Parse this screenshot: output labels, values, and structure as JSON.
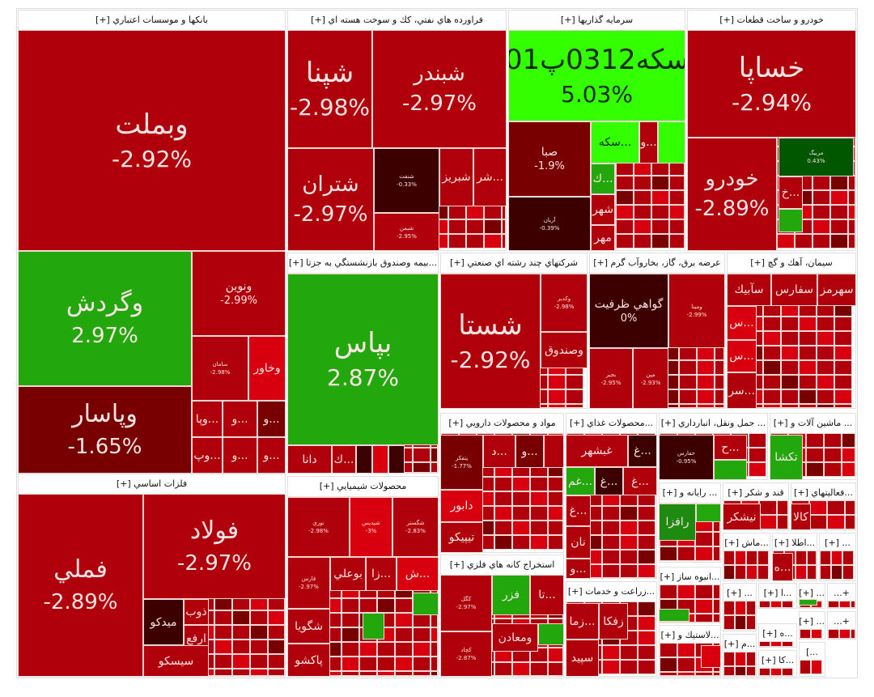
{
  "tones": {
    "red": "#b0000b",
    "bright": "#d8000e",
    "dark": "#790000",
    "darkest": "#3c0000",
    "green": "#22a80c",
    "lime": "#33ff00",
    "dgreen": "#005700",
    "mgreen": "#1e8a10"
  },
  "sectors": [
    {
      "title": "بانكها و موسسات اعتباري [+]",
      "tiles": [
        {
          "symbol": "وبملت",
          "change": "-2.92%",
          "tone": "red"
        },
        {
          "symbol": "وگردش",
          "change": "2.97%",
          "tone": "green"
        },
        {
          "symbol": "وپاسار",
          "change": "-1.65%",
          "tone": "dark"
        },
        {
          "symbol": "ونوين",
          "change": "-2.99%",
          "tone": "red"
        },
        {
          "symbol": "سامان",
          "change": "-2.98%",
          "tone": "red"
        },
        {
          "symbol": "وخاور",
          "tone": "bright"
        },
        {
          "symbol": "...وپا",
          "tone": "red"
        },
        {
          "symbol": "...و",
          "tone": "red"
        },
        {
          "symbol": "...و",
          "tone": "dark"
        },
        {
          "symbol": "...وپ",
          "tone": "red"
        },
        {
          "symbol": "...و",
          "tone": "red"
        },
        {
          "symbol": "...و",
          "tone": "red"
        }
      ]
    },
    {
      "title": "فلزات اساسي [+]",
      "tiles": [
        {
          "symbol": "فملي",
          "change": "-2.89%",
          "tone": "red"
        },
        {
          "symbol": "فولاد",
          "change": "-2.97%",
          "tone": "red"
        },
        {
          "symbol": "ميدكو",
          "tone": "darkest"
        },
        {
          "symbol": "ذوب",
          "tone": "red"
        },
        {
          "symbol": "ارفع",
          "tone": "red"
        },
        {
          "symbol": "سيسكو",
          "tone": "red"
        }
      ]
    },
    {
      "title": "فراورده هاي نفتي، كك و سوخت هسته اي [+]",
      "tiles": [
        {
          "symbol": "شپنا",
          "change": "-2.98%",
          "tone": "red"
        },
        {
          "symbol": "شبندر",
          "change": "-2.97%",
          "tone": "red"
        },
        {
          "symbol": "شتران",
          "change": "-2.97%",
          "tone": "red"
        },
        {
          "symbol": "شنفت",
          "change": "-0.33%",
          "tone": "darkest"
        },
        {
          "symbol": "شيمن",
          "change": "-2.95%",
          "tone": "red"
        },
        {
          "symbol": "شبريز",
          "tone": "red"
        },
        {
          "symbol": "...شر",
          "tone": "red"
        }
      ]
    },
    {
      "title": "سرمايه گذاريها [+]",
      "tiles": [
        {
          "symbol": "سكه0312پ01",
          "change": "5.03%",
          "tone": "lime"
        },
        {
          "symbol": "صبا",
          "change": "-1.9%",
          "tone": "dark"
        },
        {
          "symbol": "آريان",
          "change": "-0.39%",
          "tone": "darkest"
        },
        {
          "symbol": "...سكه",
          "tone": "lime"
        },
        {
          "symbol": "...و",
          "tone": "red"
        },
        {
          "symbol": "",
          "tone": "lime"
        },
        {
          "symbol": "...ك",
          "tone": "green"
        },
        {
          "symbol": "شهر",
          "tone": "red"
        },
        {
          "symbol": "مهر",
          "tone": "red"
        }
      ]
    },
    {
      "title": "خودرو و ساخت قطعات [+]",
      "tiles": [
        {
          "symbol": "خساپا",
          "change": "-2.94%",
          "tone": "red"
        },
        {
          "symbol": "خودرو",
          "change": "-2.89%",
          "tone": "red"
        },
        {
          "symbol": "مربيگ",
          "change": "0.43%",
          "tone": "dgreen"
        },
        {
          "symbol": "...خ",
          "tone": "red"
        },
        {
          "symbol": "",
          "tone": "green"
        }
      ]
    },
    {
      "title": "...بيمه وصندوق بازنشستگي به جزتا [+]",
      "tiles": [
        {
          "symbol": "بپاس",
          "change": "2.87%",
          "tone": "green"
        },
        {
          "symbol": "دانا",
          "tone": "red"
        },
        {
          "symbol": "...ك",
          "tone": "red"
        },
        {
          "symbol": "",
          "tone": "darkest"
        },
        {
          "symbol": "",
          "tone": "bright"
        },
        {
          "symbol": "",
          "tone": "darkest"
        }
      ]
    },
    {
      "title": "شركتهاي چند رشته اي صنعتي [+]",
      "tiles": [
        {
          "symbol": "شستا",
          "change": "-2.92%",
          "tone": "red"
        },
        {
          "symbol": "وكدير",
          "change": "-2.98%",
          "tone": "red"
        },
        {
          "symbol": "وصندوق",
          "tone": "red"
        }
      ]
    },
    {
      "title": "عرضه برق، گاز، بخاروآب گرم [+]",
      "tiles": [
        {
          "symbol": "گواهي ظرفيت",
          "change": "0%",
          "tone": "darkest"
        },
        {
          "symbol": "ومينا",
          "change": "-2.99%",
          "tone": "red"
        },
        {
          "symbol": "بجير",
          "change": "-2.95%",
          "tone": "red"
        },
        {
          "symbol": "مپن",
          "change": "-2.93%",
          "tone": "red"
        }
      ]
    },
    {
      "title": "سيمان، آهك و گچ [+]",
      "tiles": [
        {
          "symbol": "سآبيك",
          "tone": "red"
        },
        {
          "symbol": "سفارس",
          "tone": "red"
        },
        {
          "symbol": "سهرمز",
          "tone": "red"
        },
        {
          "symbol": "...س",
          "tone": "bright"
        },
        {
          "symbol": "...س",
          "tone": "bright"
        },
        {
          "symbol": "...سر",
          "tone": "red"
        }
      ]
    },
    {
      "title": "محصولات شيميايي [+]",
      "tiles": [
        {
          "symbol": "نوري",
          "change": "-2.98%",
          "tone": "red"
        },
        {
          "symbol": "شپديس",
          "change": "-3%",
          "tone": "bright"
        },
        {
          "symbol": "شگستر",
          "change": "-2.83%",
          "tone": "red"
        },
        {
          "symbol": "فارس",
          "change": "-2.97%",
          "tone": "red"
        },
        {
          "symbol": "بوعلي",
          "tone": "red"
        },
        {
          "symbol": "...زا",
          "tone": "red"
        },
        {
          "symbol": "...ش",
          "tone": "bright"
        },
        {
          "symbol": "شگويا",
          "tone": "red"
        },
        {
          "symbol": "پاكشو",
          "tone": "red"
        },
        {
          "symbol": "",
          "tone": "green"
        },
        {
          "symbol": "",
          "tone": "green"
        }
      ]
    },
    {
      "title": "مواد و محصولات دارويي [+]",
      "tiles": [
        {
          "symbol": "پتفكر",
          "change": "-1.77%",
          "tone": "dark"
        },
        {
          "symbol": "دابور",
          "tone": "bright"
        },
        {
          "symbol": "تيپيكو",
          "tone": "red"
        },
        {
          "symbol": "...د",
          "tone": "red"
        },
        {
          "symbol": "...و",
          "tone": "dark"
        },
        {
          "symbol": "",
          "tone": "red"
        }
      ]
    },
    {
      "title": "استخراج كانه هاي فلزي [+]",
      "tiles": [
        {
          "symbol": "كگل",
          "change": "-2.97%",
          "tone": "red"
        },
        {
          "symbol": "كچاد",
          "change": "-2.87%",
          "tone": "red"
        },
        {
          "symbol": "فزر",
          "tone": "green"
        },
        {
          "symbol": "...تا",
          "tone": "red"
        },
        {
          "symbol": "ومعادن",
          "tone": "red"
        },
        {
          "symbol": "",
          "tone": "green"
        }
      ]
    },
    {
      "title": "...محصولات غذاي [+]",
      "tiles": [
        {
          "symbol": "غبشهر",
          "tone": "red"
        },
        {
          "symbol": "...غ",
          "tone": "darkest"
        },
        {
          "symbol": "...غم",
          "tone": "green"
        },
        {
          "symbol": "...غ",
          "tone": "darkest"
        },
        {
          "symbol": "...غ",
          "tone": "red"
        },
        {
          "symbol": "...غ",
          "tone": "red"
        },
        {
          "symbol": "نان",
          "tone": "red"
        },
        {
          "symbol": "...و",
          "tone": "red"
        }
      ]
    },
    {
      "title": "...زراعت و خدمات [+]",
      "tiles": [
        {
          "symbol": "...زما",
          "tone": "red"
        },
        {
          "symbol": "زفكا",
          "tone": "red"
        },
        {
          "symbol": "سپيد",
          "tone": "red"
        }
      ]
    },
    {
      "title": "... حمل ونقل، انبارداري [+]",
      "tiles": [
        {
          "symbol": "حفارس",
          "change": "-0.95%",
          "tone": "darkest"
        },
        {
          "symbol": "...ح",
          "tone": "red"
        },
        {
          "symbol": "",
          "tone": "green"
        }
      ]
    },
    {
      "title": "... ماشين آلات و [+]",
      "tiles": [
        {
          "symbol": "تكشا",
          "tone": "green"
        }
      ]
    },
    {
      "title": "... رايانه و [+]",
      "tiles": [
        {
          "symbol": "رافزا",
          "tone": "mgreen"
        },
        {
          "symbol": "",
          "tone": "green"
        }
      ]
    },
    {
      "title": "قند و شكر [+]",
      "tiles": [
        {
          "symbol": "نيشكر",
          "tone": "red"
        }
      ]
    },
    {
      "title": "...فعاليتهاي [+]",
      "tiles": [
        {
          "symbol": "كالا",
          "tone": "red"
        }
      ]
    },
    {
      "title": "...ماش [+]",
      "tiles": []
    },
    {
      "title": "...اطلا [+]",
      "tiles": [
        {
          "symbol": "...ه",
          "tone": "red"
        }
      ]
    },
    {
      "title": "... [+]",
      "tiles": []
    },
    {
      "title": "...انبوه ساز [+]",
      "tiles": [
        {
          "symbol": "",
          "tone": "green"
        }
      ]
    },
    {
      "title": "...لاستيك و [+]",
      "tiles": [
        {
          "symbol": "",
          "tone": "bright"
        }
      ]
    },
    {
      "title": "... [+]",
      "tiles": []
    },
    {
      "title": "...ا [+]",
      "tiles": []
    },
    {
      "title": "... [+]",
      "tiles": [
        {
          "symbol": "",
          "tone": "green"
        }
      ]
    },
    {
      "title": "+...",
      "tiles": []
    },
    {
      "title": "... [+]",
      "tiles": []
    },
    {
      "title": "+...",
      "tiles": []
    },
    {
      "title": "...م [+]",
      "tiles": []
    },
    {
      "title": "...ه [+]",
      "tiles": []
    },
    {
      "title": "...كا [+]",
      "tiles": []
    },
    {
      "title": "...]",
      "tiles": []
    }
  ]
}
